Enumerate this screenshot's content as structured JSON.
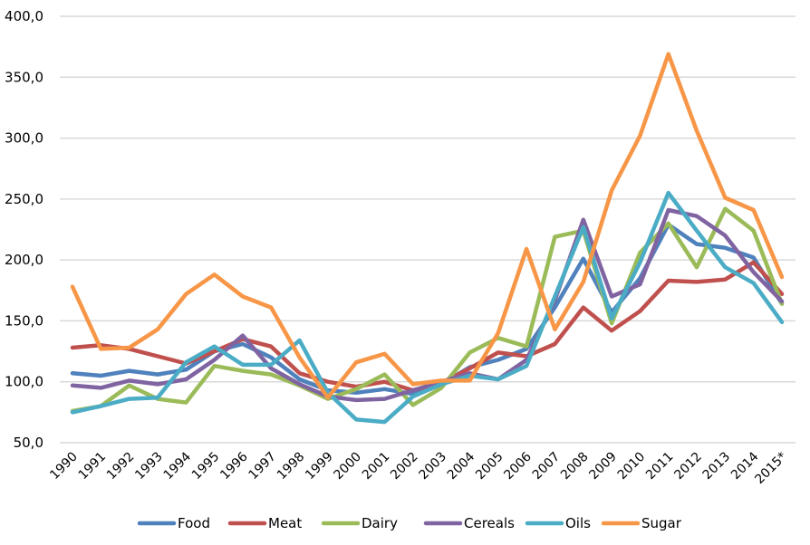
{
  "chart_data": {
    "type": "line",
    "title": "",
    "xlabel": "",
    "ylabel": "",
    "ylim": [
      50,
      400
    ],
    "yticks": [
      50,
      100,
      150,
      200,
      250,
      300,
      350,
      400
    ],
    "ytick_labels": [
      "50,0",
      "100,0",
      "150,0",
      "200,0",
      "250,0",
      "300,0",
      "350,0",
      "400,0"
    ],
    "grid": true,
    "legend_position": "bottom",
    "categories": [
      "1990",
      "1991",
      "1992",
      "1993",
      "1994",
      "1995",
      "1996",
      "1997",
      "1998",
      "1999",
      "2000",
      "2001",
      "2002",
      "2003",
      "2004",
      "2005",
      "2006",
      "2007",
      "2008",
      "2009",
      "2010",
      "2011",
      "2012",
      "2013",
      "2014",
      "2015*"
    ],
    "series": [
      {
        "name": "Food",
        "color": "#4f81bd",
        "values": [
          107,
          105,
          109,
          106,
          110,
          125,
          131,
          120,
          102,
          93,
          91,
          94,
          90,
          98,
          112,
          118,
          127,
          161,
          201,
          157,
          185,
          229,
          213,
          210,
          202,
          164
        ]
      },
      {
        "name": "Meat",
        "color": "#c0504d",
        "values": [
          128,
          130,
          127,
          121,
          115,
          125,
          135,
          129,
          107,
          100,
          96,
          100,
          93,
          99,
          111,
          124,
          121,
          131,
          161,
          142,
          158,
          183,
          182,
          184,
          198,
          172
        ]
      },
      {
        "name": "Dairy",
        "color": "#9bbb59",
        "values": [
          76,
          80,
          97,
          86,
          83,
          113,
          109,
          106,
          97,
          86,
          94,
          106,
          81,
          95,
          124,
          136,
          129,
          219,
          224,
          148,
          206,
          230,
          194,
          242,
          224,
          164
        ]
      },
      {
        "name": "Cereals",
        "color": "#8064a2",
        "values": [
          97,
          95,
          101,
          98,
          102,
          118,
          138,
          111,
          98,
          88,
          85,
          86,
          93,
          100,
          107,
          102,
          118,
          167,
          233,
          170,
          180,
          241,
          236,
          220,
          190,
          166
        ]
      },
      {
        "name": "Oils",
        "color": "#4bacc6",
        "values": [
          75,
          80,
          86,
          87,
          116,
          129,
          114,
          114,
          134,
          91,
          69,
          67,
          88,
          98,
          105,
          102,
          113,
          170,
          227,
          152,
          198,
          255,
          224,
          194,
          181,
          149
        ]
      },
      {
        "name": "Sugar",
        "color": "#f79646",
        "values": [
          178,
          127,
          128,
          143,
          172,
          188,
          170,
          161,
          120,
          87,
          116,
          123,
          98,
          101,
          101,
          140,
          209,
          143,
          182,
          257,
          302,
          369,
          306,
          251,
          241,
          186
        ]
      }
    ]
  }
}
